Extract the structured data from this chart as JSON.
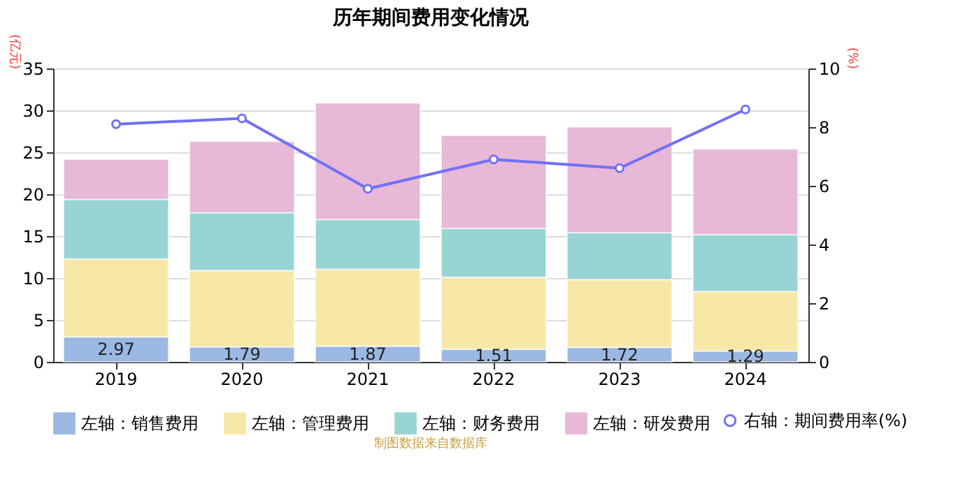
{
  "chart_data": {
    "type": "bar",
    "title": "历年期间费用变化情况",
    "categories": [
      "2019",
      "2020",
      "2021",
      "2022",
      "2023",
      "2024"
    ],
    "stacked": true,
    "ylabel": "(亿元)",
    "y2label": "(%)",
    "ylim": [
      0,
      35
    ],
    "yticks": [
      0,
      5,
      10,
      15,
      20,
      25,
      30,
      35
    ],
    "y2lim": [
      0,
      10
    ],
    "y2ticks": [
      0,
      2,
      4,
      6,
      8,
      10
    ],
    "grid": "y",
    "legend": "bottom",
    "annotations": [
      "制图数据来自数据库"
    ],
    "series": [
      {
        "name": "左轴：销售费用",
        "color": "#9bb8e2",
        "values": [
          2.97,
          1.79,
          1.87,
          1.51,
          1.72,
          1.29
        ],
        "value_labels": [
          "2.97",
          "1.79",
          "1.87",
          "1.51",
          "1.72",
          "1.29"
        ]
      },
      {
        "name": "左轴：管理费用",
        "color": "#f8e8a8",
        "values": [
          9.3,
          9.1,
          9.2,
          8.6,
          8.1,
          7.1
        ]
      },
      {
        "name": "左轴：财务费用",
        "color": "#98d4d4",
        "values": [
          7.1,
          6.9,
          5.9,
          5.8,
          5.6,
          6.8
        ]
      },
      {
        "name": "左轴：研发费用",
        "color": "#e8b8d8",
        "values": [
          4.8,
          8.5,
          13.9,
          11.1,
          12.6,
          10.2
        ]
      },
      {
        "name": "右轴：期间费用率(%)",
        "type": "line",
        "axis": "y2",
        "marker": "circle",
        "color": "#7070f8",
        "values": [
          8.1,
          8.3,
          5.9,
          6.9,
          6.6,
          8.6
        ]
      }
    ]
  }
}
